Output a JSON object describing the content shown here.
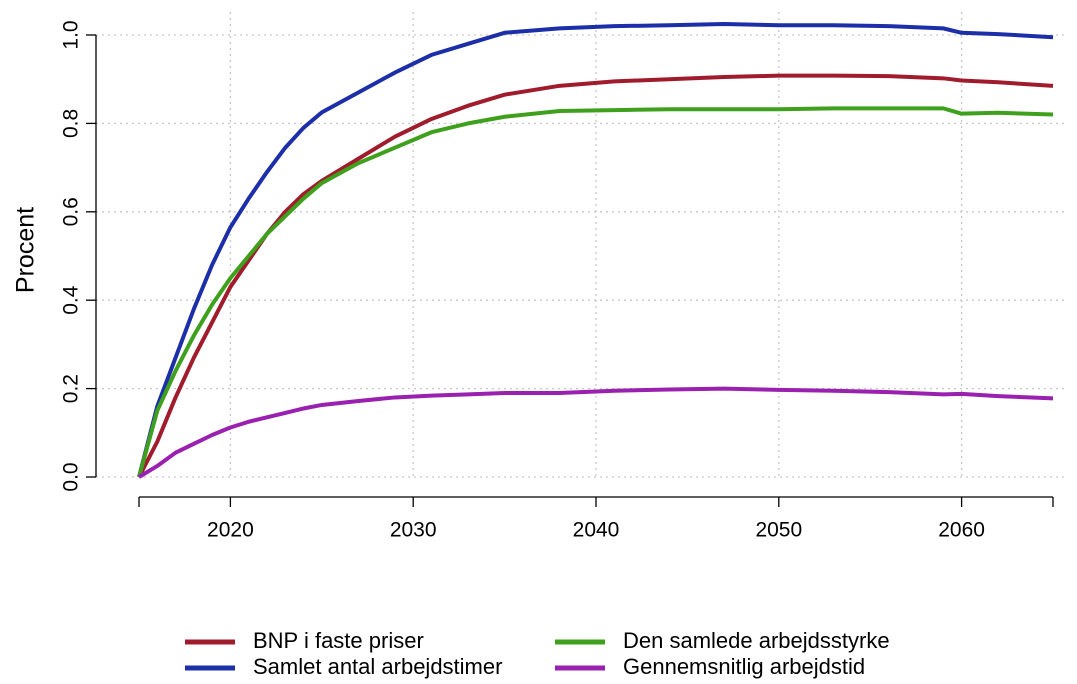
{
  "chart_data": {
    "type": "line",
    "y_label": "Procent",
    "x": [
      2015,
      2016,
      2017,
      2018,
      2019,
      2020,
      2021,
      2022,
      2023,
      2024,
      2025,
      2027,
      2029,
      2031,
      2033,
      2035,
      2038,
      2041,
      2044,
      2047,
      2050,
      2053,
      2056,
      2059,
      2060,
      2062,
      2065
    ],
    "series": [
      {
        "name": "BNP i faste priser",
        "color": "#a01c2c",
        "values": [
          0,
          0.08,
          0.18,
          0.27,
          0.35,
          0.43,
          0.49,
          0.55,
          0.6,
          0.64,
          0.67,
          0.72,
          0.77,
          0.81,
          0.84,
          0.865,
          0.885,
          0.895,
          0.9,
          0.905,
          0.908,
          0.908,
          0.907,
          0.902,
          0.897,
          0.893,
          0.885
        ]
      },
      {
        "name": "Samlet antal arbejdstimer",
        "color": "#1c2ea8",
        "values": [
          0,
          0.16,
          0.27,
          0.38,
          0.48,
          0.565,
          0.63,
          0.69,
          0.745,
          0.79,
          0.825,
          0.87,
          0.915,
          0.955,
          0.98,
          1.005,
          1.015,
          1.02,
          1.022,
          1.025,
          1.022,
          1.022,
          1.02,
          1.015,
          1.005,
          1.002,
          0.995
        ]
      },
      {
        "name": "Den samlede arbejdsstyrke",
        "color": "#3ea01c",
        "values": [
          0,
          0.15,
          0.24,
          0.32,
          0.39,
          0.45,
          0.5,
          0.55,
          0.59,
          0.63,
          0.665,
          0.71,
          0.745,
          0.78,
          0.8,
          0.815,
          0.828,
          0.83,
          0.832,
          0.832,
          0.832,
          0.834,
          0.834,
          0.834,
          0.822,
          0.824,
          0.82
        ]
      },
      {
        "name": "Gennemsnitlig arbejdstid",
        "color": "#9a20b0",
        "values": [
          0,
          0.025,
          0.055,
          0.075,
          0.095,
          0.112,
          0.125,
          0.135,
          0.145,
          0.155,
          0.163,
          0.172,
          0.18,
          0.184,
          0.187,
          0.19,
          0.19,
          0.195,
          0.198,
          0.2,
          0.197,
          0.195,
          0.192,
          0.187,
          0.188,
          0.183,
          0.178
        ]
      }
    ],
    "xlim": [
      2015,
      2065
    ],
    "xticks": [
      2020,
      2030,
      2040,
      2050,
      2060
    ],
    "ylim": [
      0,
      1
    ],
    "yticks": [
      {
        "value": 0,
        "label": "0.0"
      },
      0.2,
      0.4,
      0.6,
      0.8,
      {
        "value": 1,
        "label": "1.0"
      }
    ],
    "grid": true,
    "legend": "bottom"
  }
}
